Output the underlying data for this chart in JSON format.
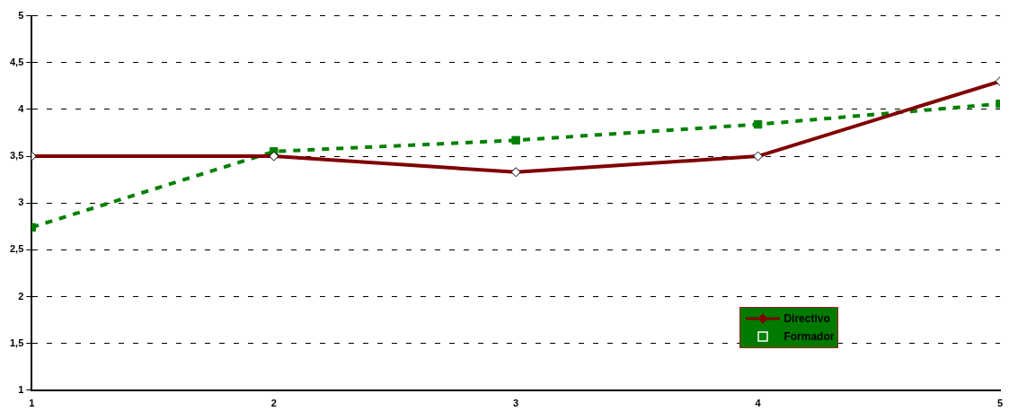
{
  "chart_data": {
    "type": "line",
    "x": [
      1,
      2,
      3,
      4,
      5
    ],
    "series": [
      {
        "name": "Directivo",
        "color": "#800000",
        "values": [
          3.5,
          3.5,
          3.33,
          3.5,
          4.3
        ],
        "marker": "diamond",
        "line_style": "solid"
      },
      {
        "name": "Formador",
        "color": "#008000",
        "values": [
          2.74,
          3.55,
          3.67,
          3.84,
          4.06
        ],
        "marker": "square",
        "line_style": "dashed"
      }
    ],
    "xlim": [
      1,
      5
    ],
    "xticks": [
      1,
      2,
      3,
      4,
      5
    ],
    "ylim": [
      1,
      5
    ],
    "yticks": [
      1,
      {
        "value": 1.5,
        "label": "1,5"
      },
      2,
      {
        "value": 2.5,
        "label": "2,5"
      },
      3,
      {
        "value": 3.5,
        "label": "3,5"
      },
      4,
      {
        "value": 4.5,
        "label": "4,5"
      },
      5
    ],
    "grid": "y",
    "legend": "bottom right"
  }
}
